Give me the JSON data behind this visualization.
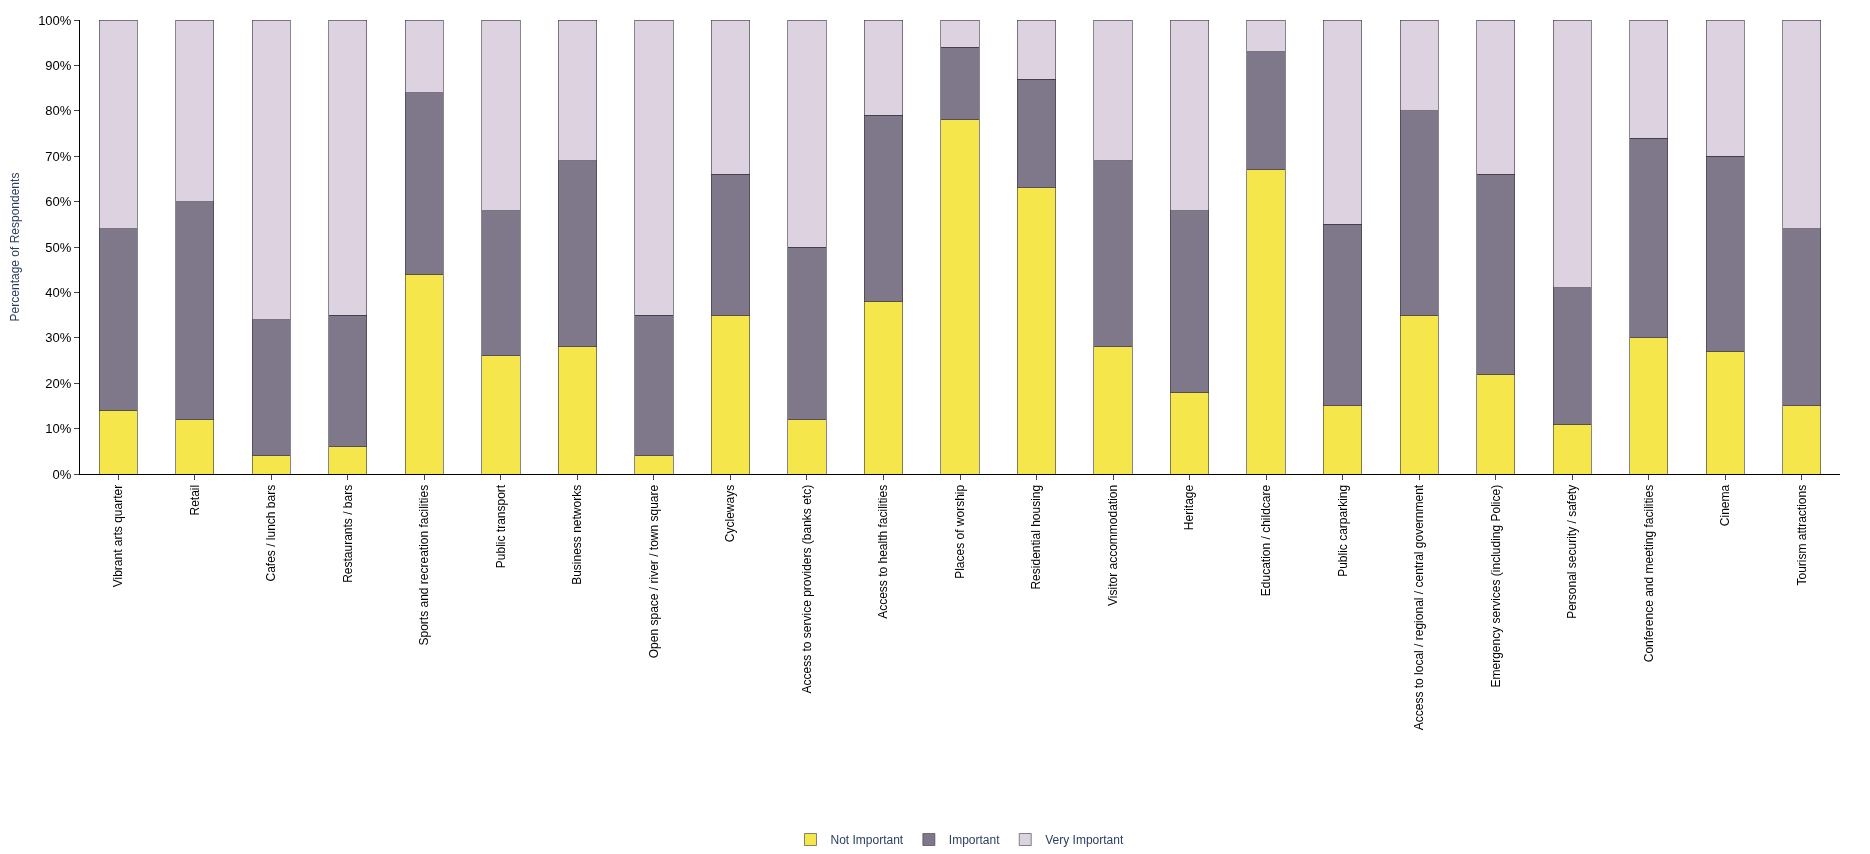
{
  "chart_data": {
    "type": "bar",
    "stacked": true,
    "ylabel": "Percentage of Respondents",
    "categories": [
      "Vibrant arts quarter",
      "Retail",
      "Cafes / lunch bars",
      "Restaurants / bars",
      "Sports and recreation facilities",
      "Public transport",
      "Business networks",
      "Open space / river / town square",
      "Cycleways",
      "Access to service providers (banks etc)",
      "Access to health facilities",
      "Places of worship",
      "Residential housing",
      "Visitor accommodation",
      "Heritage",
      "Education / childcare",
      "Public carparking",
      "Access to local / regional / central government",
      "Emergency services (including Police)",
      "Personal security / safety",
      "Conference and meeting facilities",
      "Cinema",
      "Tourism attractions"
    ],
    "series": [
      {
        "name": "Not Important",
        "color": "#f5e64c",
        "values": [
          14,
          12,
          4,
          6,
          44,
          26,
          28,
          4,
          35,
          12,
          38,
          78,
          63,
          28,
          18,
          67,
          15,
          35,
          22,
          11,
          30,
          27,
          15
        ]
      },
      {
        "name": "Important",
        "color": "#7f778a",
        "values": [
          40,
          48,
          30,
          29,
          40,
          32,
          41,
          31,
          31,
          38,
          41,
          16,
          24,
          41,
          40,
          26,
          40,
          45,
          44,
          30,
          44,
          43,
          39
        ]
      },
      {
        "name": "Very Important",
        "color": "#ddd3e0",
        "values": [
          46,
          40,
          66,
          65,
          16,
          42,
          31,
          65,
          34,
          50,
          21,
          6,
          13,
          31,
          42,
          7,
          45,
          20,
          34,
          59,
          26,
          30,
          46
        ]
      }
    ],
    "ylim": [
      0,
      100
    ],
    "yticks": [
      {
        "value": 0,
        "label": "0%"
      },
      {
        "value": 10,
        "label": "10%"
      },
      {
        "value": 20,
        "label": "20%"
      },
      {
        "value": 30,
        "label": "30%"
      },
      {
        "value": 40,
        "label": "40%"
      },
      {
        "value": 50,
        "label": "50%"
      },
      {
        "value": 60,
        "label": "60%"
      },
      {
        "value": 70,
        "label": "70%"
      },
      {
        "value": 80,
        "label": "80%"
      },
      {
        "value": 90,
        "label": "90%"
      },
      {
        "value": 100,
        "label": "100%"
      }
    ],
    "legend": "bottom"
  }
}
